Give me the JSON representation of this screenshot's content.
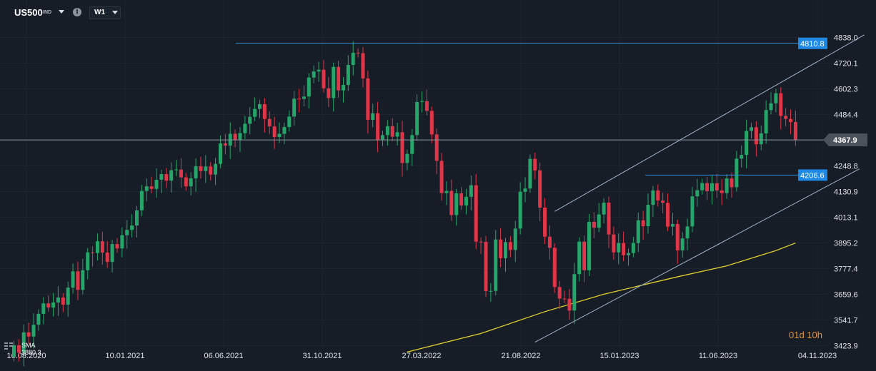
{
  "header": {
    "symbol": "US500",
    "symbol_type": "IND",
    "timeframe": "W1"
  },
  "indicator": {
    "label": "SMA",
    "value": "3880.3"
  },
  "countdown": "01d 10h",
  "colors": {
    "background": "#161d26",
    "up": "#26a56a",
    "down": "#e0364a",
    "sma": "#e0cf2e",
    "level_line": "#2f8fe0",
    "channel": "#9fb2c8",
    "price_line": "#8c949e"
  },
  "chart_data": {
    "type": "candlestick",
    "timeframe": "W1",
    "ylim": [
      3410,
      4880
    ],
    "y_ticks": [
      "4838.0",
      "4720.1",
      "4602.3",
      "4484.4",
      "4367.9",
      "4248.8",
      "4130.9",
      "4013.1",
      "3895.2",
      "3777.4",
      "3659.6",
      "3541.7",
      "3423.9"
    ],
    "x_labels": [
      "16.08.2020",
      "10.01.2021",
      "06.06.2021",
      "31.10.2021",
      "27.03.2022",
      "21.08.2022",
      "15.01.2023",
      "11.06.2023",
      "04.11.2023"
    ],
    "current_price": "4367.9",
    "levels": [
      {
        "label": "4810.8",
        "value": 4810.8
      },
      {
        "label": "4206.6",
        "value": 4206.6
      }
    ],
    "channel": {
      "upper": [
        {
          "week": 110,
          "price": 4040
        },
        {
          "week": 173,
          "price": 4850
        }
      ],
      "lower": [
        {
          "week": 106,
          "price": 3440
        },
        {
          "week": 172,
          "price": 4235
        }
      ]
    },
    "sma": {
      "name": "SMA",
      "points": [
        {
          "week": 80,
          "price": 3395
        },
        {
          "week": 95,
          "price": 3480
        },
        {
          "week": 108,
          "price": 3580
        },
        {
          "week": 120,
          "price": 3660
        },
        {
          "week": 135,
          "price": 3740
        },
        {
          "week": 145,
          "price": 3790
        },
        {
          "week": 155,
          "price": 3860
        },
        {
          "week": 159,
          "price": 3895
        }
      ]
    },
    "candles": [
      [
        3372,
        3426
      ],
      [
        3426,
        3392
      ],
      [
        3392,
        3485
      ],
      [
        3485,
        3466
      ],
      [
        3466,
        3520
      ],
      [
        3520,
        3570
      ],
      [
        3570,
        3618
      ],
      [
        3618,
        3599
      ],
      [
        3599,
        3622
      ],
      [
        3622,
        3645
      ],
      [
        3645,
        3612
      ],
      [
        3612,
        3690
      ],
      [
        3690,
        3765
      ],
      [
        3765,
        3680
      ],
      [
        3680,
        3770
      ],
      [
        3770,
        3852
      ],
      [
        3852,
        3849
      ],
      [
        3849,
        3903
      ],
      [
        3903,
        3851
      ],
      [
        3851,
        3808
      ],
      [
        3808,
        3890
      ],
      [
        3890,
        3870
      ],
      [
        3870,
        3931
      ],
      [
        3931,
        3955
      ],
      [
        3955,
        3975
      ],
      [
        3975,
        4045
      ],
      [
        4045,
        4134
      ],
      [
        4134,
        4155
      ],
      [
        4155,
        4143
      ],
      [
        4143,
        4185
      ],
      [
        4185,
        4211
      ],
      [
        4211,
        4181
      ],
      [
        4181,
        4229
      ],
      [
        4229,
        4232
      ],
      [
        4232,
        4196
      ],
      [
        4196,
        4155
      ],
      [
        4155,
        4192
      ],
      [
        4192,
        4247
      ],
      [
        4247,
        4225
      ],
      [
        4225,
        4246
      ],
      [
        4246,
        4209
      ],
      [
        4209,
        4258
      ],
      [
        4258,
        4352
      ],
      [
        4352,
        4342
      ],
      [
        4342,
        4396
      ],
      [
        4396,
        4368
      ],
      [
        4368,
        4399
      ],
      [
        4399,
        4442
      ],
      [
        4442,
        4474
      ],
      [
        4474,
        4510
      ],
      [
        4510,
        4532
      ],
      [
        4532,
        4464
      ],
      [
        4464,
        4430
      ],
      [
        4430,
        4381
      ],
      [
        4381,
        4396
      ],
      [
        4396,
        4427
      ],
      [
        4427,
        4475
      ],
      [
        4475,
        4557
      ],
      [
        4557,
        4556
      ],
      [
        4556,
        4567
      ],
      [
        4567,
        4654
      ],
      [
        4654,
        4682
      ],
      [
        4682,
        4690
      ],
      [
        4690,
        4605
      ],
      [
        4605,
        4560
      ],
      [
        4560,
        4703
      ],
      [
        4703,
        4595
      ],
      [
        4595,
        4620
      ],
      [
        4620,
        4712
      ],
      [
        4712,
        4768
      ],
      [
        4768,
        4766
      ],
      [
        4766,
        4650
      ],
      [
        4650,
        4460
      ],
      [
        4460,
        4490
      ],
      [
        4490,
        4367
      ],
      [
        4367,
        4390
      ],
      [
        4390,
        4431
      ],
      [
        4431,
        4383
      ],
      [
        4383,
        4403
      ],
      [
        4403,
        4262
      ],
      [
        4262,
        4304
      ],
      [
        4304,
        4390
      ],
      [
        4390,
        4542
      ],
      [
        4542,
        4546
      ],
      [
        4546,
        4501
      ],
      [
        4501,
        4393
      ],
      [
        4393,
        4272
      ],
      [
        4272,
        4124
      ],
      [
        4124,
        4134
      ],
      [
        4134,
        4023
      ],
      [
        4023,
        4123
      ],
      [
        4123,
        4067
      ],
      [
        4067,
        4107
      ],
      [
        4107,
        4160
      ],
      [
        4160,
        3901
      ],
      [
        3901,
        3900
      ],
      [
        3900,
        3674
      ],
      [
        3674,
        3675
      ],
      [
        3675,
        3911
      ],
      [
        3911,
        3825
      ],
      [
        3825,
        3899
      ],
      [
        3899,
        3863
      ],
      [
        3863,
        3961
      ],
      [
        3961,
        4130
      ],
      [
        4130,
        4145
      ],
      [
        4145,
        4281
      ],
      [
        4281,
        4228
      ],
      [
        4228,
        4057
      ],
      [
        4057,
        3924
      ],
      [
        3924,
        3873
      ],
      [
        3873,
        3693
      ],
      [
        3693,
        3640
      ],
      [
        3640,
        3639
      ],
      [
        3639,
        3585
      ],
      [
        3585,
        3752
      ],
      [
        3752,
        3901
      ],
      [
        3901,
        3770
      ],
      [
        3770,
        3992
      ],
      [
        3992,
        3965
      ],
      [
        3965,
        4026
      ],
      [
        4026,
        4080
      ],
      [
        4080,
        3934
      ],
      [
        3934,
        3852
      ],
      [
        3852,
        3895
      ],
      [
        3895,
        3839
      ],
      [
        3839,
        3849
      ],
      [
        3849,
        3895
      ],
      [
        3895,
        3999
      ],
      [
        3999,
        3972
      ],
      [
        3972,
        4070
      ],
      [
        4070,
        4136
      ],
      [
        4136,
        4090
      ],
      [
        4090,
        4079
      ],
      [
        4079,
        3970
      ],
      [
        3970,
        3982
      ],
      [
        3982,
        3861
      ],
      [
        3861,
        3916
      ],
      [
        3916,
        3971
      ],
      [
        3971,
        4109
      ],
      [
        4109,
        4137
      ],
      [
        4137,
        4170
      ],
      [
        4170,
        4133
      ],
      [
        4133,
        4169
      ],
      [
        4169,
        4136
      ],
      [
        4136,
        4124
      ],
      [
        4124,
        4191
      ],
      [
        4191,
        4151
      ],
      [
        4151,
        4282
      ],
      [
        4282,
        4299
      ],
      [
        4299,
        4409
      ],
      [
        4409,
        4426
      ],
      [
        4426,
        4348
      ],
      [
        4348,
        4398
      ],
      [
        4398,
        4505
      ],
      [
        4505,
        4536
      ],
      [
        4536,
        4582
      ],
      [
        4582,
        4478
      ],
      [
        4478,
        4464
      ],
      [
        4464,
        4450
      ],
      [
        4450,
        4367
      ]
    ]
  }
}
